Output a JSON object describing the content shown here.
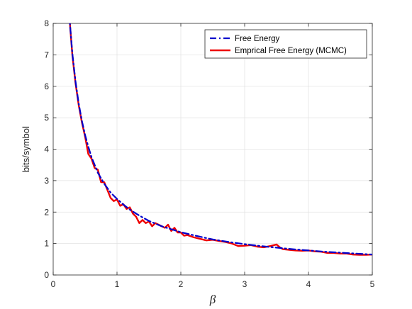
{
  "chart_data": {
    "type": "line",
    "xlabel": "β",
    "ylabel": "bits/symbol",
    "xlim": [
      0,
      5
    ],
    "ylim": [
      0,
      8
    ],
    "xticks": [
      "0",
      "1",
      "2",
      "3",
      "4",
      "5"
    ],
    "yticks": [
      "0",
      "1",
      "2",
      "3",
      "4",
      "5",
      "6",
      "7",
      "8"
    ],
    "grid": true,
    "legend_position": "top-right",
    "series": [
      {
        "name": "Free Energy",
        "color": "#0000cc",
        "style": "dash-dot",
        "x": [
          0.25,
          0.3,
          0.35,
          0.4,
          0.45,
          0.5,
          0.55,
          0.6,
          0.7,
          0.8,
          0.9,
          1.0,
          1.1,
          1.2,
          1.3,
          1.4,
          1.5,
          1.7,
          2.0,
          2.25,
          2.5,
          2.75,
          3.0,
          3.25,
          3.5,
          3.75,
          4.0,
          4.25,
          4.5,
          4.75,
          5.0
        ],
        "y": [
          8.3,
          7.05,
          6.15,
          5.45,
          4.9,
          4.45,
          4.08,
          3.75,
          3.25,
          2.9,
          2.62,
          2.42,
          2.24,
          2.08,
          1.95,
          1.83,
          1.72,
          1.55,
          1.36,
          1.24,
          1.13,
          1.05,
          0.98,
          0.92,
          0.87,
          0.82,
          0.78,
          0.74,
          0.71,
          0.68,
          0.65
        ]
      },
      {
        "name": "Emprical Free Energy (MCMC)",
        "color": "#ee0000",
        "style": "solid",
        "x": [
          0.25,
          0.3,
          0.35,
          0.4,
          0.45,
          0.5,
          0.55,
          0.6,
          0.65,
          0.7,
          0.75,
          0.8,
          0.85,
          0.9,
          0.95,
          1.0,
          1.05,
          1.1,
          1.15,
          1.2,
          1.25,
          1.3,
          1.35,
          1.4,
          1.45,
          1.5,
          1.55,
          1.6,
          1.65,
          1.7,
          1.75,
          1.8,
          1.85,
          1.9,
          1.95,
          2.0,
          2.05,
          2.1,
          2.2,
          2.3,
          2.4,
          2.5,
          2.6,
          2.7,
          2.8,
          2.9,
          3.0,
          3.1,
          3.2,
          3.3,
          3.4,
          3.5,
          3.55,
          3.6,
          3.7,
          3.8,
          3.9,
          4.0,
          4.1,
          4.2,
          4.3,
          4.4,
          4.5,
          4.6,
          4.7,
          4.8,
          4.9,
          5.0
        ],
        "y": [
          8.3,
          7.0,
          6.1,
          5.4,
          4.85,
          4.4,
          3.85,
          3.7,
          3.4,
          3.35,
          2.95,
          2.95,
          2.7,
          2.45,
          2.35,
          2.4,
          2.2,
          2.25,
          2.1,
          2.15,
          1.95,
          1.85,
          1.65,
          1.75,
          1.65,
          1.7,
          1.55,
          1.65,
          1.6,
          1.55,
          1.5,
          1.6,
          1.4,
          1.5,
          1.35,
          1.35,
          1.25,
          1.27,
          1.2,
          1.15,
          1.1,
          1.12,
          1.08,
          1.05,
          1.0,
          0.92,
          0.93,
          0.95,
          0.9,
          0.88,
          0.92,
          0.97,
          0.88,
          0.82,
          0.8,
          0.78,
          0.77,
          0.78,
          0.75,
          0.74,
          0.7,
          0.7,
          0.68,
          0.68,
          0.65,
          0.64,
          0.64,
          0.65
        ]
      }
    ]
  }
}
